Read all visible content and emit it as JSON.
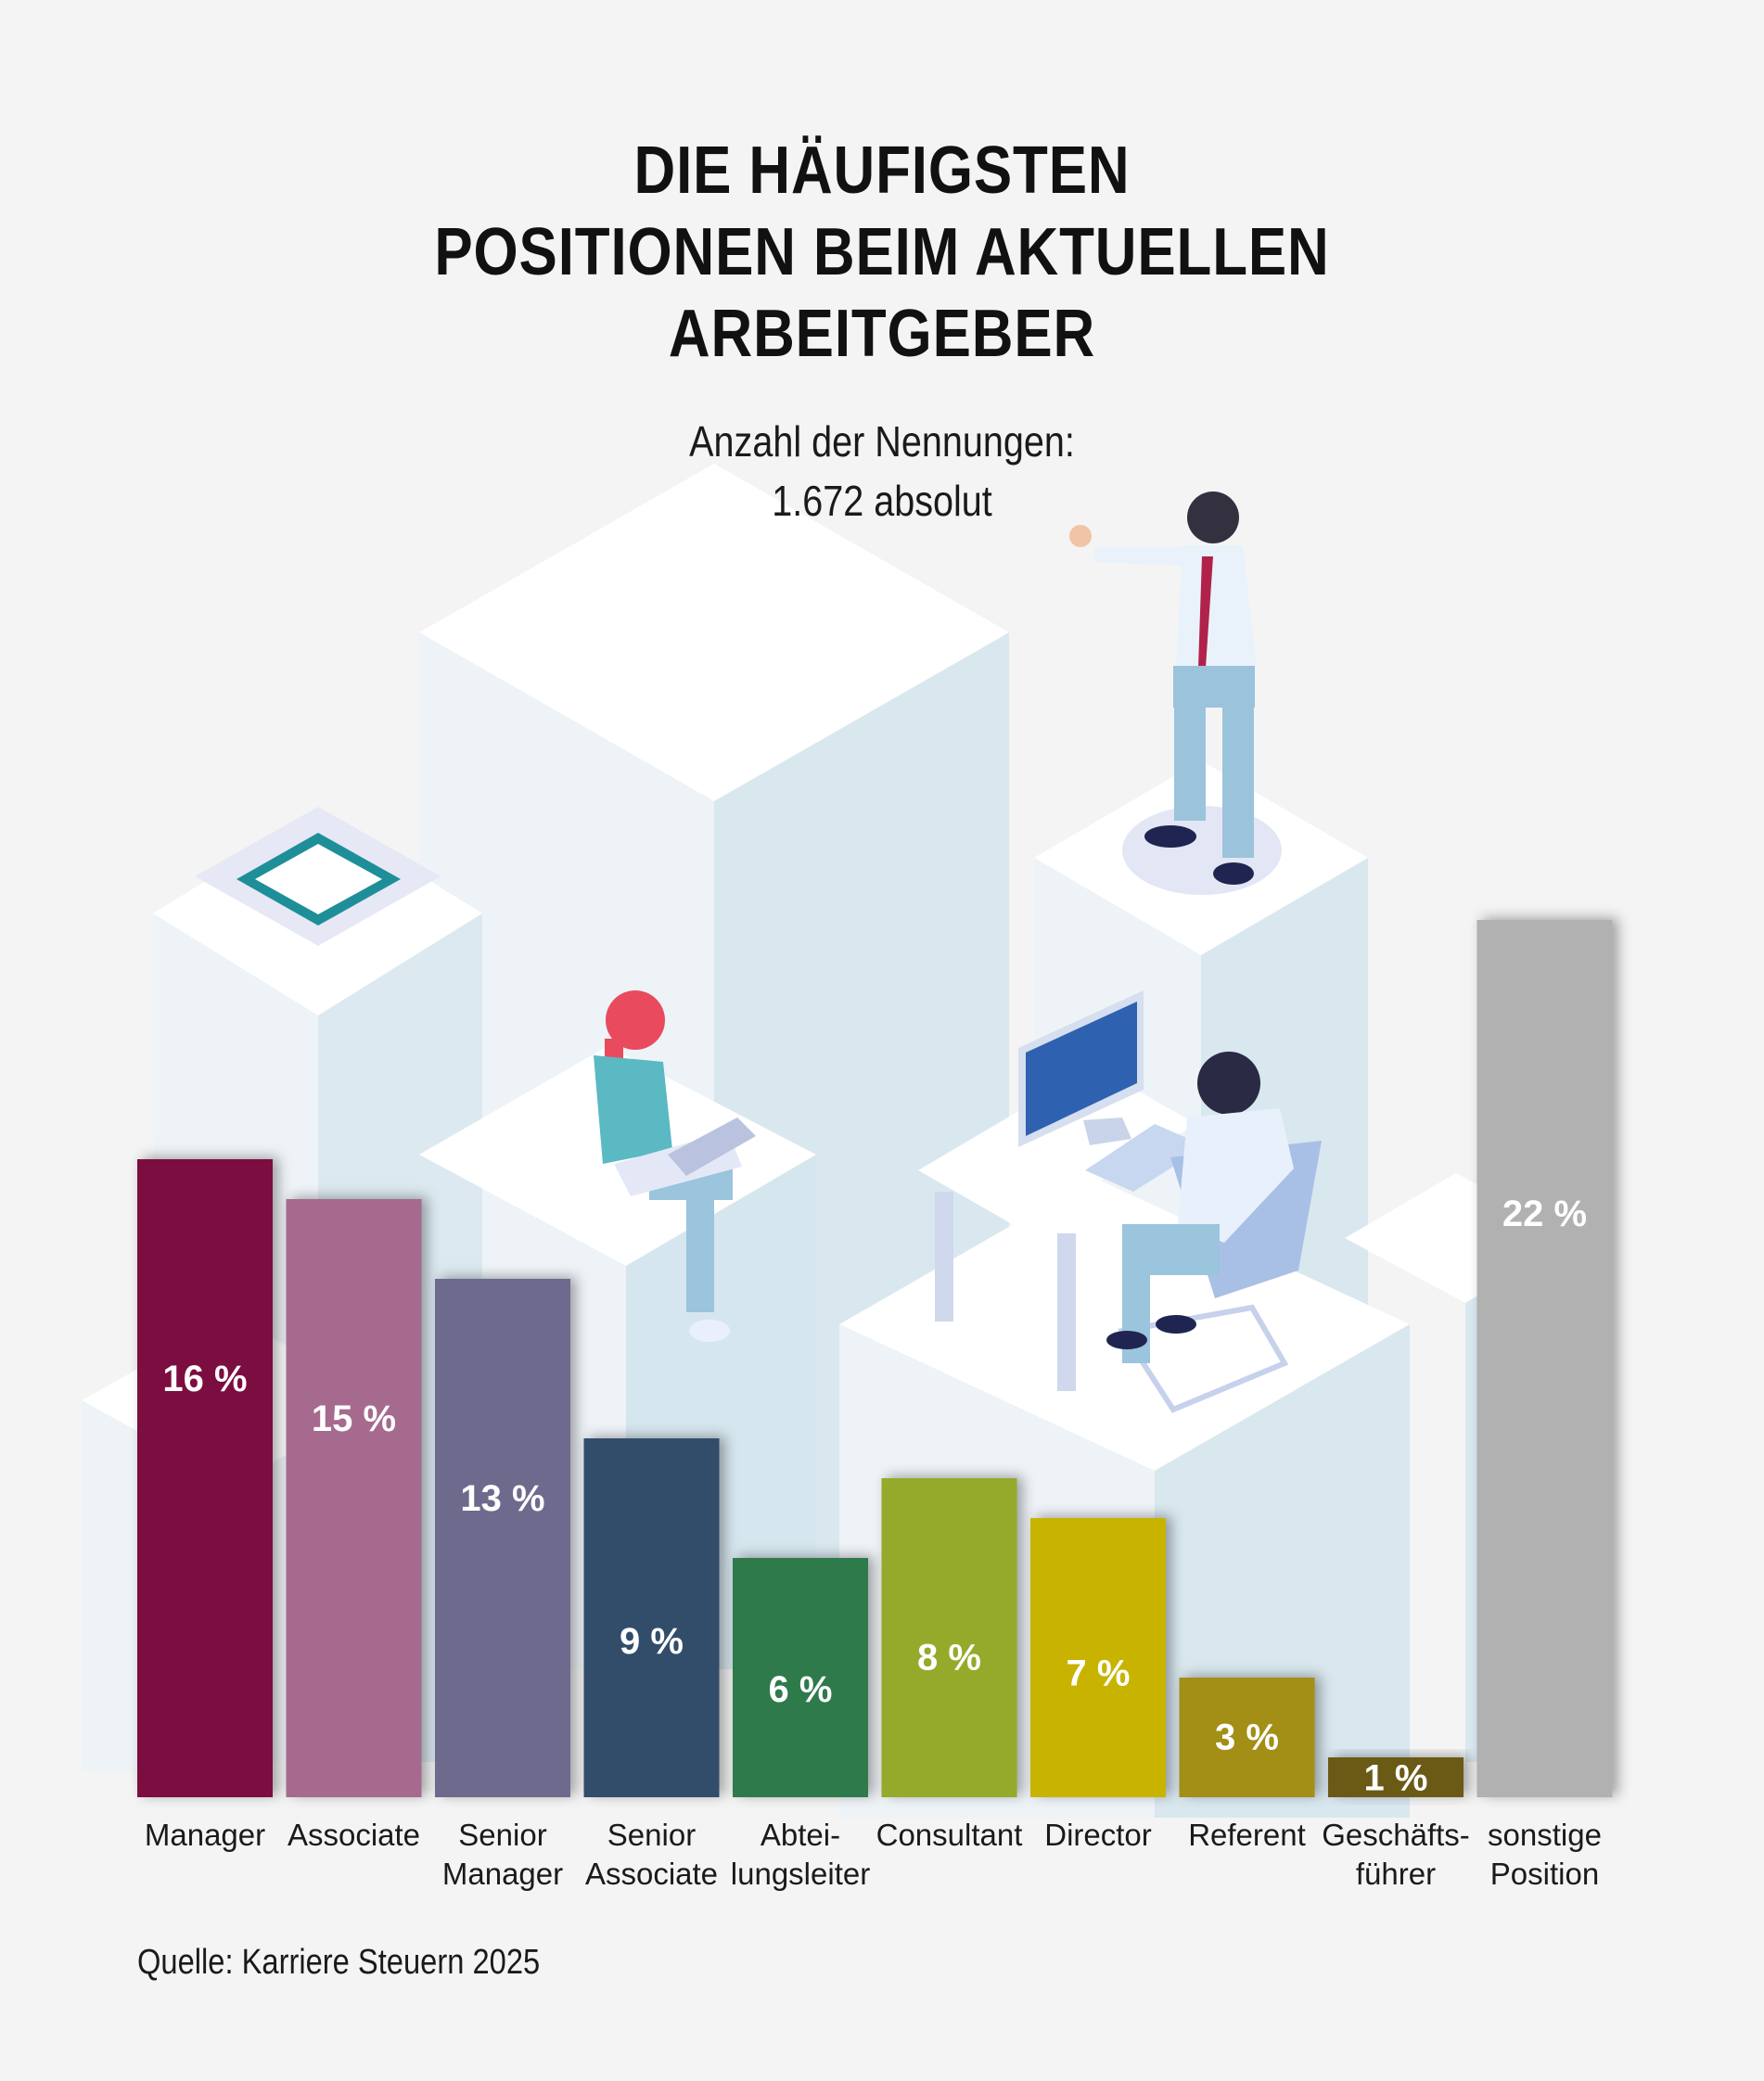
{
  "title_lines": [
    "DIE HÄUFIGSTEN",
    "POSITIONEN BEIM AKTUELLEN",
    "ARBEITGEBER"
  ],
  "subtitle_lines": [
    "Anzahl der Nennungen:",
    "1.672 absolut"
  ],
  "source": "Quelle: Karriere Steuern 2025",
  "chart_data": {
    "type": "bar",
    "categories": [
      [
        "Manager"
      ],
      [
        "Associate"
      ],
      [
        "Senior",
        "Manager"
      ],
      [
        "Senior",
        "Associate"
      ],
      [
        "Abtei-",
        "lungsleiter"
      ],
      [
        "Consultant"
      ],
      [
        "Director"
      ],
      [
        "Referent"
      ],
      [
        "Geschäfts-",
        "führer"
      ],
      [
        "sonstige",
        "Position"
      ]
    ],
    "values": [
      16,
      15,
      13,
      9,
      6,
      8,
      7,
      3,
      1,
      22
    ],
    "value_labels": [
      "16 %",
      "15 %",
      "13 %",
      "9 %",
      "6 %",
      "8 %",
      "7 %",
      "3 %",
      "1 %",
      "22 %"
    ],
    "colors": [
      "#7b1040",
      "#a66b8e",
      "#6e6a8d",
      "#334d6a",
      "#2e7a4c",
      "#95aa2c",
      "#c8b300",
      "#a38e15",
      "#6a5a14",
      "#b1b1b1"
    ],
    "label_color": "#ffffff",
    "ylim": [
      0,
      22
    ]
  }
}
